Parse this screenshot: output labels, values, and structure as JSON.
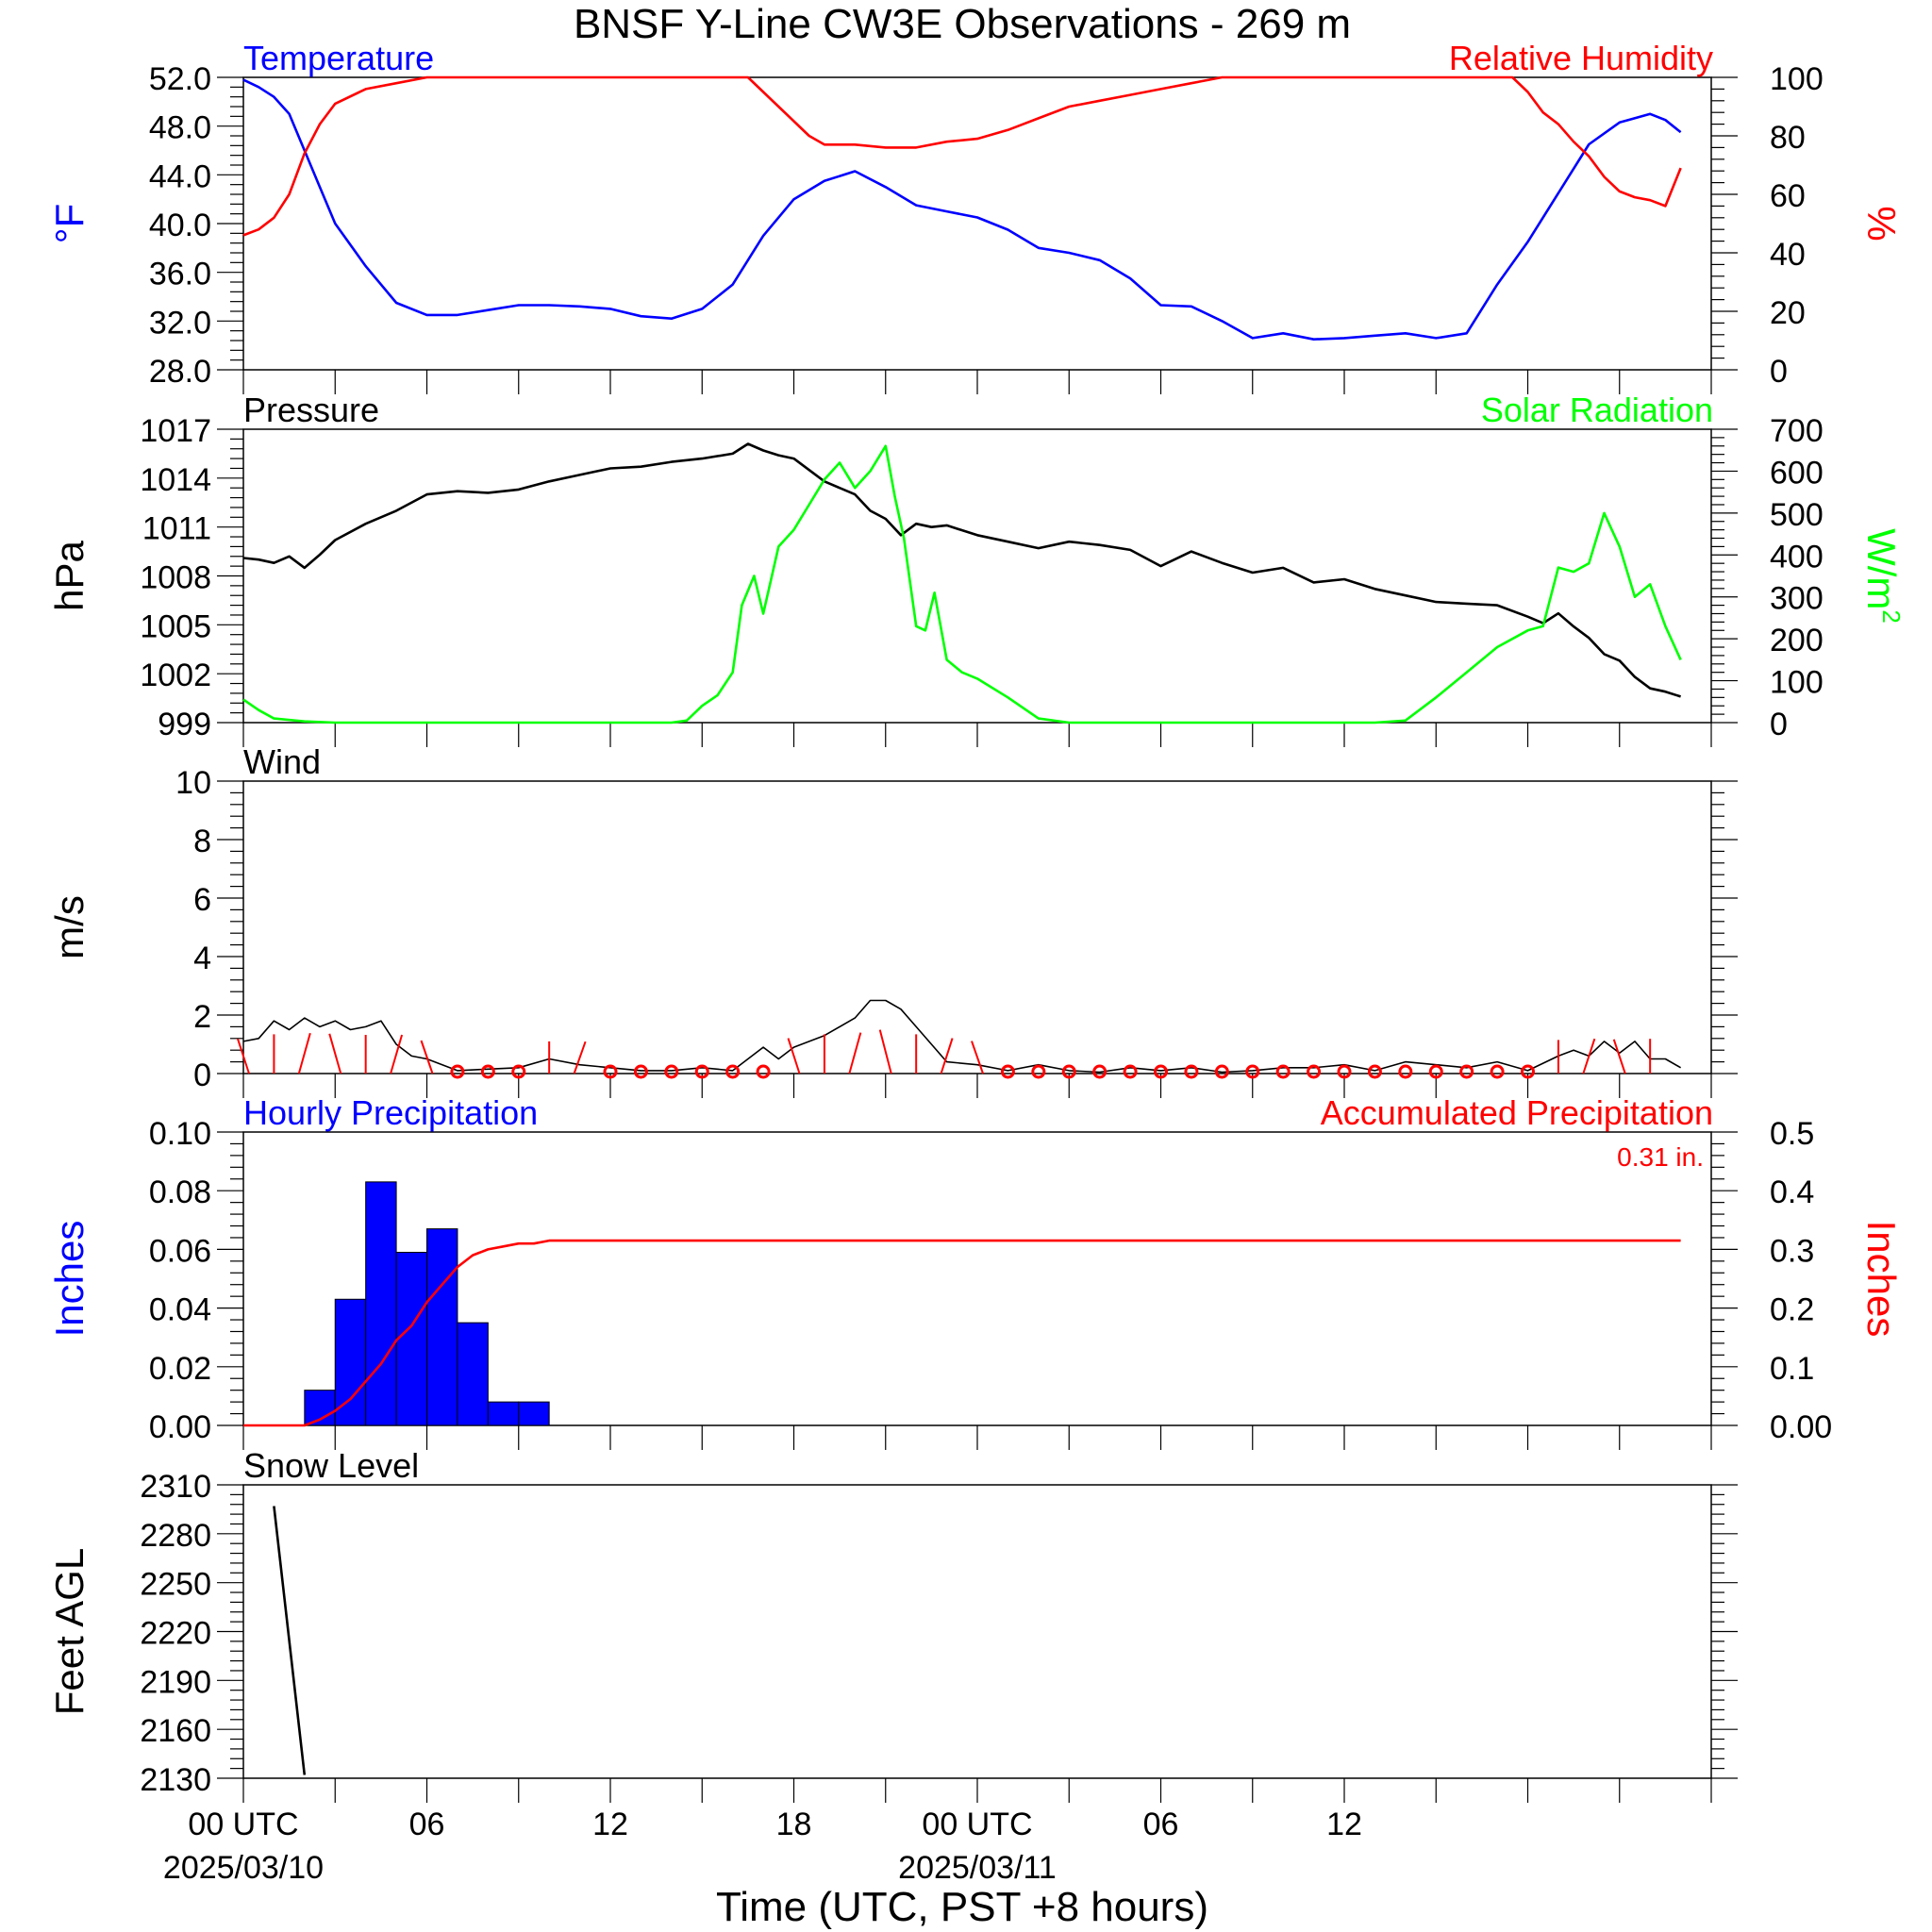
{
  "title": "BNSF Y-Line CW3E Observations - 269 m",
  "x_axis": {
    "label": "Time (UTC, PST +8 hours)",
    "ticks": [
      {
        "hour": 0,
        "label": "00 UTC",
        "sub": "2025/03/10"
      },
      {
        "hour": 6,
        "label": "06",
        "sub": ""
      },
      {
        "hour": 12,
        "label": "12",
        "sub": ""
      },
      {
        "hour": 18,
        "label": "18",
        "sub": ""
      },
      {
        "hour": 24,
        "label": "00 UTC",
        "sub": "2025/03/11"
      },
      {
        "hour": 30,
        "label": "06",
        "sub": ""
      },
      {
        "hour": 36,
        "label": "12",
        "sub": ""
      },
      {
        "hour": 42,
        "label": "",
        "sub": ""
      }
    ],
    "range_hours": [
      0,
      48
    ]
  },
  "colors": {
    "blue": "#0000ff",
    "red": "#ff0000",
    "green": "#00ff00",
    "black": "#000000"
  },
  "chart_data": [
    {
      "type": "line",
      "panel": "temperature_humidity",
      "left_title": "Temperature",
      "right_title": "Relative Humidity",
      "left_unit": "°F",
      "right_unit": "%",
      "left_ylim": [
        28,
        52
      ],
      "right_ylim": [
        0,
        100
      ],
      "left_ticks": [
        "52.0",
        "48.0",
        "44.0",
        "40.0",
        "36.0",
        "32.0",
        "28.0"
      ],
      "right_ticks": [
        "100",
        "80",
        "60",
        "40",
        "20",
        "0"
      ],
      "series": [
        {
          "name": "Temperature",
          "axis": "left",
          "color": "#0000ff",
          "x": [
            0,
            0.5,
            1,
            1.5,
            2,
            2.5,
            3,
            4,
            5,
            6,
            7,
            8,
            9,
            10,
            11,
            12,
            13,
            14,
            15,
            16,
            17,
            18,
            19,
            20,
            21,
            22,
            23,
            24,
            25,
            26,
            27,
            28,
            29,
            30,
            31,
            32,
            33,
            34,
            35,
            36,
            37,
            38,
            39,
            40,
            41,
            42,
            43,
            44,
            45,
            46,
            46.5,
            47
          ],
          "y": [
            51.8,
            51.2,
            50.4,
            49.0,
            46.0,
            43.0,
            40.0,
            36.5,
            33.5,
            32.5,
            32.5,
            32.9,
            33.3,
            33.3,
            33.2,
            33.0,
            32.4,
            32.2,
            33.0,
            35.0,
            39.0,
            42.0,
            43.5,
            44.3,
            43.0,
            41.5,
            41.0,
            40.5,
            39.5,
            38.0,
            37.6,
            37.0,
            35.5,
            33.3,
            33.2,
            32.0,
            30.6,
            31.0,
            30.5,
            30.6,
            30.8,
            31.0,
            30.6,
            31.0,
            35.0,
            38.5,
            42.5,
            46.5,
            48.3,
            49.0,
            48.5,
            47.5
          ]
        },
        {
          "name": "Relative Humidity",
          "axis": "right",
          "color": "#ff0000",
          "x": [
            0,
            0.5,
            1,
            1.5,
            2,
            2.5,
            3,
            4,
            5,
            6,
            7,
            8,
            9,
            10,
            11,
            12,
            13,
            14,
            15,
            16,
            16.5,
            17,
            17.5,
            18,
            18.5,
            19,
            20,
            21,
            22,
            23,
            24,
            25,
            26,
            27,
            28,
            29,
            30,
            31,
            32,
            33,
            34,
            35,
            36,
            37,
            38,
            39,
            40,
            41,
            41.5,
            42,
            42.5,
            43,
            43.5,
            44,
            44.5,
            45,
            45.5,
            46,
            46.5,
            47
          ],
          "y": [
            46,
            48,
            52,
            60,
            74,
            84,
            91,
            96,
            98,
            100,
            100,
            100,
            100,
            100,
            100,
            100,
            100,
            100,
            100,
            100,
            100,
            95,
            90,
            85,
            80,
            77,
            77,
            76,
            76,
            78,
            79,
            82,
            86,
            90,
            92,
            94,
            96,
            98,
            100,
            100,
            100,
            100,
            100,
            100,
            100,
            100,
            100,
            100,
            100,
            95,
            88,
            84,
            78,
            73,
            66,
            61,
            59,
            58,
            56,
            69
          ]
        }
      ]
    },
    {
      "type": "line",
      "panel": "pressure_solar",
      "left_title": "Pressure",
      "right_title": "Solar Radiation",
      "left_unit": "hPa",
      "right_unit": "W/m",
      "right_unit_sup": "2",
      "left_ylim": [
        999,
        1017
      ],
      "right_ylim": [
        0,
        700
      ],
      "left_ticks": [
        "1017",
        "1014",
        "1011",
        "1008",
        "1005",
        "1002",
        "999"
      ],
      "right_ticks": [
        "700",
        "600",
        "500",
        "400",
        "300",
        "200",
        "100",
        "0"
      ],
      "series": [
        {
          "name": "Pressure",
          "axis": "left",
          "color": "#000000",
          "x": [
            0,
            0.5,
            1,
            1.5,
            2,
            2.5,
            3,
            4,
            5,
            6,
            7,
            8,
            9,
            10,
            11,
            12,
            13,
            14,
            15,
            16,
            16.5,
            17,
            17.5,
            18,
            18.5,
            19,
            20,
            20.5,
            21,
            21.5,
            22,
            22.5,
            23,
            24,
            25,
            26,
            27,
            28,
            29,
            30,
            31,
            32,
            33,
            34,
            35,
            36,
            37,
            38,
            39,
            40,
            41,
            42,
            42.5,
            43,
            43.5,
            44,
            44.5,
            45,
            45.5,
            46,
            46.5,
            47
          ],
          "y": [
            1009.1,
            1009.0,
            1008.8,
            1009.2,
            1008.5,
            1009.3,
            1010.2,
            1011.2,
            1012.0,
            1013.0,
            1013.2,
            1013.1,
            1013.3,
            1013.8,
            1014.2,
            1014.6,
            1014.7,
            1015.0,
            1015.2,
            1015.5,
            1016.1,
            1015.7,
            1015.4,
            1015.2,
            1014.5,
            1013.8,
            1013.0,
            1012.0,
            1011.5,
            1010.5,
            1011.2,
            1011.0,
            1011.1,
            1010.5,
            1010.1,
            1009.7,
            1010.1,
            1009.9,
            1009.6,
            1008.6,
            1009.5,
            1008.8,
            1008.2,
            1008.5,
            1007.6,
            1007.8,
            1007.2,
            1006.8,
            1006.4,
            1006.3,
            1006.2,
            1005.5,
            1005.1,
            1005.7,
            1004.9,
            1004.2,
            1003.2,
            1002.8,
            1001.8,
            1001.1,
            1000.9,
            1000.6
          ]
        },
        {
          "name": "Solar Radiation",
          "axis": "right",
          "color": "#00ff00",
          "x": [
            0,
            0.5,
            1,
            2,
            3,
            4,
            5,
            6,
            7,
            8,
            9,
            10,
            11,
            12,
            13,
            14,
            14.5,
            15,
            15.5,
            16,
            16.3,
            16.7,
            17,
            17.5,
            18,
            18.5,
            19,
            19.5,
            20,
            20.5,
            21,
            21.3,
            21.6,
            22,
            22.3,
            22.6,
            23,
            23.5,
            24,
            25,
            26,
            27,
            28,
            29,
            30,
            31,
            32,
            33,
            34,
            35,
            36,
            37,
            38,
            39,
            40,
            41,
            42,
            42.5,
            43,
            43.5,
            44,
            44.5,
            45,
            45.5,
            46,
            46.5,
            47
          ],
          "y": [
            55,
            30,
            10,
            3,
            0,
            0,
            0,
            0,
            0,
            0,
            0,
            0,
            0,
            0,
            0,
            0,
            5,
            40,
            65,
            120,
            280,
            350,
            260,
            420,
            460,
            520,
            580,
            620,
            560,
            600,
            660,
            540,
            440,
            230,
            220,
            310,
            150,
            120,
            105,
            60,
            10,
            0,
            0,
            0,
            0,
            0,
            0,
            0,
            0,
            0,
            0,
            0,
            5,
            60,
            120,
            180,
            220,
            230,
            370,
            360,
            380,
            500,
            420,
            300,
            330,
            230,
            150
          ]
        }
      ]
    },
    {
      "type": "line",
      "panel": "wind",
      "left_title": "Wind",
      "left_unit": "m/s",
      "left_ylim": [
        0,
        10
      ],
      "left_ticks": [
        "10",
        "8",
        "6",
        "4",
        "2",
        "0"
      ],
      "series": [
        {
          "name": "Wind",
          "axis": "left",
          "color": "#000000",
          "x": [
            0,
            0.5,
            1,
            1.5,
            2,
            2.5,
            3,
            3.5,
            4,
            4.5,
            5,
            5.5,
            6,
            7,
            8,
            9,
            10,
            11,
            12,
            13,
            14,
            15,
            16,
            17,
            17.5,
            18,
            19,
            20,
            20.5,
            21,
            21.5,
            22,
            22.5,
            23,
            24,
            25,
            26,
            27,
            28,
            29,
            30,
            31,
            32,
            33,
            34,
            35,
            36,
            37,
            38,
            39,
            40,
            41,
            42,
            43,
            43.5,
            44,
            44.5,
            45,
            45.5,
            46,
            46.5,
            47
          ],
          "y": [
            1.1,
            1.2,
            1.8,
            1.5,
            1.9,
            1.6,
            1.8,
            1.5,
            1.6,
            1.8,
            1.0,
            0.6,
            0.5,
            0.1,
            0.15,
            0.2,
            0.5,
            0.3,
            0.2,
            0.1,
            0.1,
            0.2,
            0.1,
            0.9,
            0.5,
            0.9,
            1.3,
            1.9,
            2.5,
            2.5,
            2.2,
            1.6,
            1.0,
            0.4,
            0.3,
            0.1,
            0.3,
            0.1,
            0.05,
            0.2,
            0.1,
            0.2,
            0.05,
            0.1,
            0.2,
            0.2,
            0.3,
            0.1,
            0.4,
            0.3,
            0.2,
            0.4,
            0.1,
            0.6,
            0.8,
            0.6,
            1.1,
            0.7,
            1.1,
            0.5,
            0.5,
            0.2
          ]
        },
        {
          "name": "Wind barbs",
          "axis": "left",
          "color": "#ff0000",
          "kind": "barbs",
          "x": [
            0,
            1,
            2,
            3,
            4,
            5,
            6,
            7,
            8,
            9,
            10,
            11,
            12,
            13,
            14,
            15,
            16,
            17,
            18,
            19,
            20,
            21,
            22,
            23,
            24,
            25,
            26,
            27,
            28,
            29,
            30,
            31,
            32,
            33,
            34,
            35,
            36,
            37,
            38,
            39,
            40,
            41,
            42,
            43,
            44,
            45,
            46
          ],
          "y": [
            0.8,
            1.6,
            1.8,
            1.7,
            1.5,
            1.5,
            0.5,
            0.05,
            0.05,
            0.2,
            0.35,
            0.3,
            0.2,
            0.05,
            0.05,
            0.1,
            0.05,
            0.2,
            0.9,
            1.6,
            1.9,
            2.4,
            1.6,
            0.9,
            0.4,
            0.1,
            0.25,
            0.05,
            0.05,
            0.1,
            0.05,
            0.1,
            0.05,
            0.05,
            0.2,
            0.2,
            0.25,
            0.05,
            0.1,
            0.15,
            0.1,
            0.1,
            0.15,
            0.6,
            0.8,
            0.7,
            0.8
          ]
        }
      ]
    },
    {
      "type": "bar",
      "panel": "precipitation",
      "left_title": "Hourly Precipitation",
      "right_title": "Accumulated Precipitation",
      "right_note": "0.31 in.",
      "left_unit": "Inches",
      "right_unit": "Inches",
      "left_ylim": [
        0,
        0.1
      ],
      "right_ylim": [
        0,
        0.5
      ],
      "left_ticks": [
        "0.10",
        "0.08",
        "0.06",
        "0.04",
        "0.02",
        "0.00"
      ],
      "right_ticks": [
        "0.5",
        "0.4",
        "0.3",
        "0.2",
        "0.1",
        "0.00"
      ],
      "series": [
        {
          "name": "Hourly Precipitation",
          "axis": "left",
          "color": "#0000ff",
          "kind": "bars",
          "x": [
            2,
            3,
            4,
            5,
            6,
            7,
            8,
            9
          ],
          "y": [
            0.012,
            0.043,
            0.083,
            0.059,
            0.067,
            0.035,
            0.008,
            0.008
          ]
        },
        {
          "name": "Accumulated Precipitation",
          "axis": "right",
          "color": "#ff0000",
          "x": [
            0,
            2,
            2.5,
            3,
            3.5,
            4,
            4.5,
            5,
            5.5,
            6,
            6.5,
            7,
            7.5,
            8,
            8.5,
            9,
            9.5,
            10,
            47
          ],
          "y": [
            0,
            0,
            0.01,
            0.025,
            0.045,
            0.075,
            0.105,
            0.145,
            0.17,
            0.21,
            0.24,
            0.27,
            0.29,
            0.3,
            0.305,
            0.31,
            0.31,
            0.315,
            0.315
          ]
        }
      ]
    },
    {
      "type": "line",
      "panel": "snow_level",
      "left_title": "Snow Level",
      "left_unit": "Feet AGL",
      "left_ylim": [
        2130,
        2310
      ],
      "left_ticks": [
        "2310",
        "2280",
        "2250",
        "2220",
        "2190",
        "2160",
        "2130"
      ],
      "series": [
        {
          "name": "Snow Level",
          "axis": "left",
          "color": "#000000",
          "x": [
            1,
            2
          ],
          "y": [
            2297,
            2132
          ]
        }
      ]
    }
  ]
}
